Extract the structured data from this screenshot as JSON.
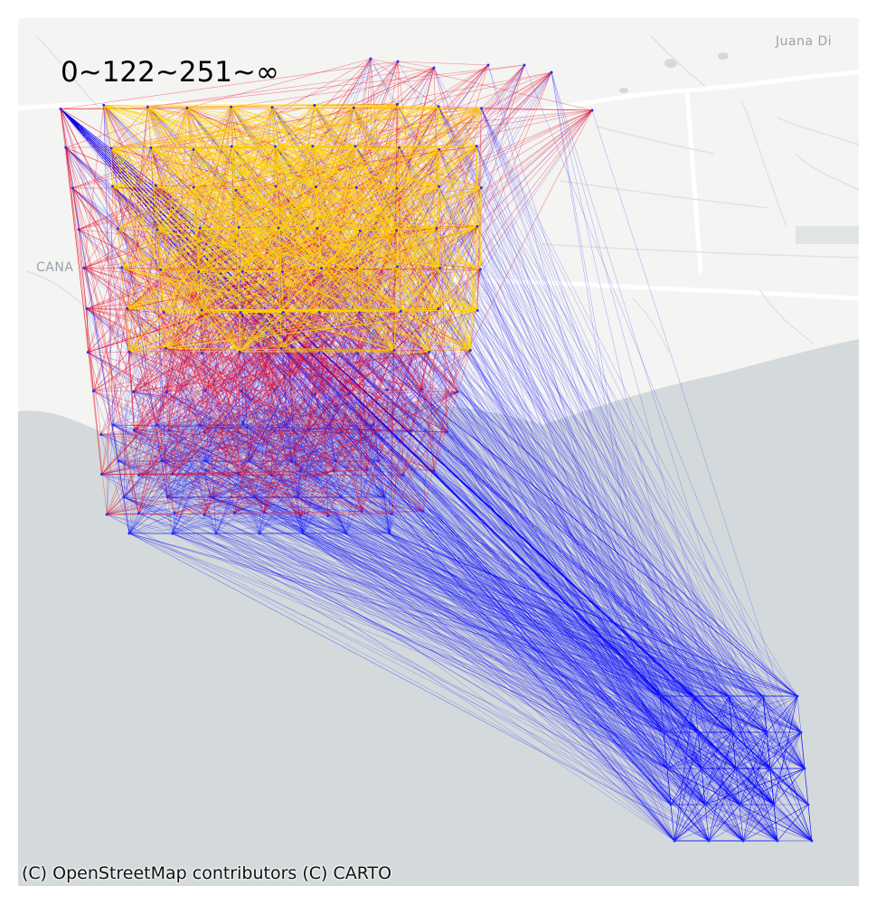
{
  "map": {
    "legend_text": "0~122~251~∞",
    "attribution": "(C) OpenStreetMap contributors (C) CARTO",
    "place_labels": [
      "Juana Di",
      "CANA"
    ],
    "colors": {
      "land": "#f4f4f2",
      "water": "#d4dadc",
      "road": "#ffffff",
      "minor_road": "#e2e2e2",
      "edge_low": "#0000ff",
      "edge_mid": "#e8001c",
      "edge_high": "#ffd400"
    },
    "legend_bins": [
      "0~122",
      "122~251",
      "251~∞"
    ]
  }
}
